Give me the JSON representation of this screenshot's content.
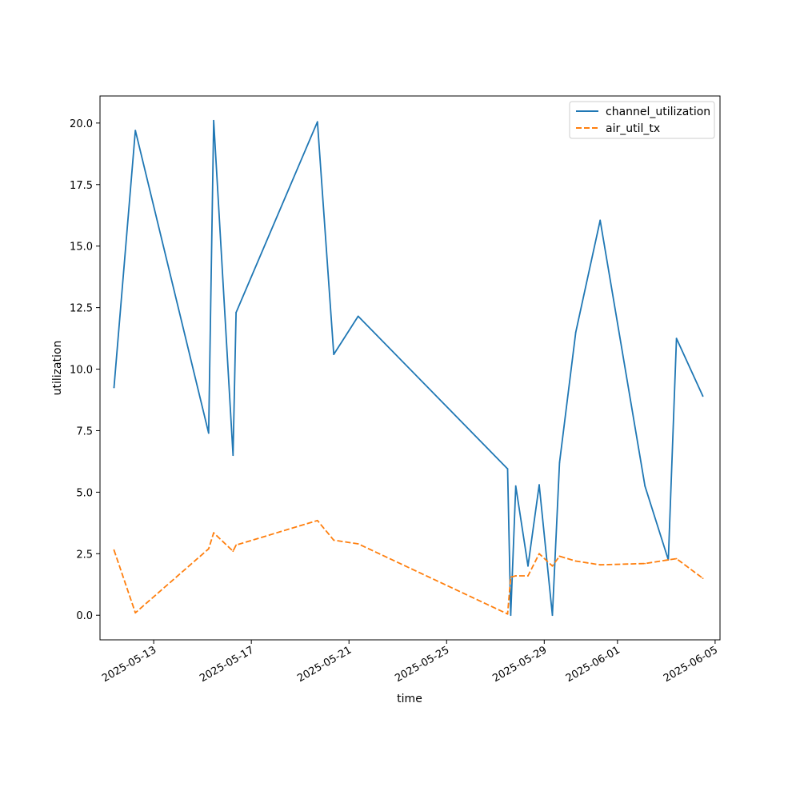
{
  "chart_data": {
    "type": "line",
    "title": "",
    "xlabel": "time",
    "ylabel": "utilization",
    "xlim": [
      "2025-05-10T19:12",
      "2025-06-05T04:48"
    ],
    "ylim": [
      -1.0,
      21.1
    ],
    "x_ticks": [
      "2025-05-13",
      "2025-05-17",
      "2025-05-21",
      "2025-05-25",
      "2025-05-29",
      "2025-06-01",
      "2025-06-05"
    ],
    "y_ticks": [
      "0.0",
      "2.5",
      "5.0",
      "7.5",
      "10.0",
      "12.5",
      "15.0",
      "17.5",
      "20.0"
    ],
    "grid": false,
    "legend": {
      "position": "top-right"
    },
    "series": [
      {
        "name": "channel_utilization",
        "color": "#1f77b4",
        "style": "solid",
        "points": [
          [
            "2025-05-11T09:00",
            9.25
          ],
          [
            "2025-05-12T06:00",
            19.7
          ],
          [
            "2025-05-15T06:00",
            7.4
          ],
          [
            "2025-05-15T11:00",
            20.1
          ],
          [
            "2025-05-16T06:00",
            6.5
          ],
          [
            "2025-05-16T09:00",
            12.3
          ],
          [
            "2025-05-19T17:00",
            20.05
          ],
          [
            "2025-05-20T09:00",
            10.6
          ],
          [
            "2025-05-21T09:00",
            12.15
          ],
          [
            "2025-05-27T12:00",
            5.95
          ],
          [
            "2025-05-27T15:00",
            0.0
          ],
          [
            "2025-05-27T20:00",
            5.25
          ],
          [
            "2025-05-28T08:00",
            2.0
          ],
          [
            "2025-05-28T19:00",
            5.3
          ],
          [
            "2025-05-29T08:00",
            0.0
          ],
          [
            "2025-05-29T15:00",
            6.2
          ],
          [
            "2025-05-30T07:00",
            11.5
          ],
          [
            "2025-05-31T07:00",
            16.05
          ],
          [
            "2025-06-02T03:00",
            5.25
          ],
          [
            "2025-06-03T02:00",
            2.25
          ],
          [
            "2025-06-03T10:00",
            11.25
          ],
          [
            "2025-06-04T12:00",
            8.9
          ]
        ]
      },
      {
        "name": "air_util_tx",
        "color": "#ff7f0e",
        "style": "dashed",
        "points": [
          [
            "2025-05-11T09:00",
            2.65
          ],
          [
            "2025-05-12T06:00",
            0.1
          ],
          [
            "2025-05-15T06:00",
            2.7
          ],
          [
            "2025-05-15T11:00",
            3.35
          ],
          [
            "2025-05-16T06:00",
            2.6
          ],
          [
            "2025-05-16T09:00",
            2.85
          ],
          [
            "2025-05-19T17:00",
            3.85
          ],
          [
            "2025-05-20T09:00",
            3.05
          ],
          [
            "2025-05-21T09:00",
            2.9
          ],
          [
            "2025-05-27T12:00",
            0.05
          ],
          [
            "2025-05-27T15:00",
            1.55
          ],
          [
            "2025-05-27T20:00",
            1.6
          ],
          [
            "2025-05-28T08:00",
            1.6
          ],
          [
            "2025-05-28T19:00",
            2.5
          ],
          [
            "2025-05-29T08:00",
            2.0
          ],
          [
            "2025-05-29T15:00",
            2.4
          ],
          [
            "2025-05-30T07:00",
            2.2
          ],
          [
            "2025-05-31T07:00",
            2.05
          ],
          [
            "2025-06-02T03:00",
            2.1
          ],
          [
            "2025-06-03T02:00",
            2.25
          ],
          [
            "2025-06-03T10:00",
            2.3
          ],
          [
            "2025-06-04T12:00",
            1.5
          ]
        ]
      }
    ]
  }
}
